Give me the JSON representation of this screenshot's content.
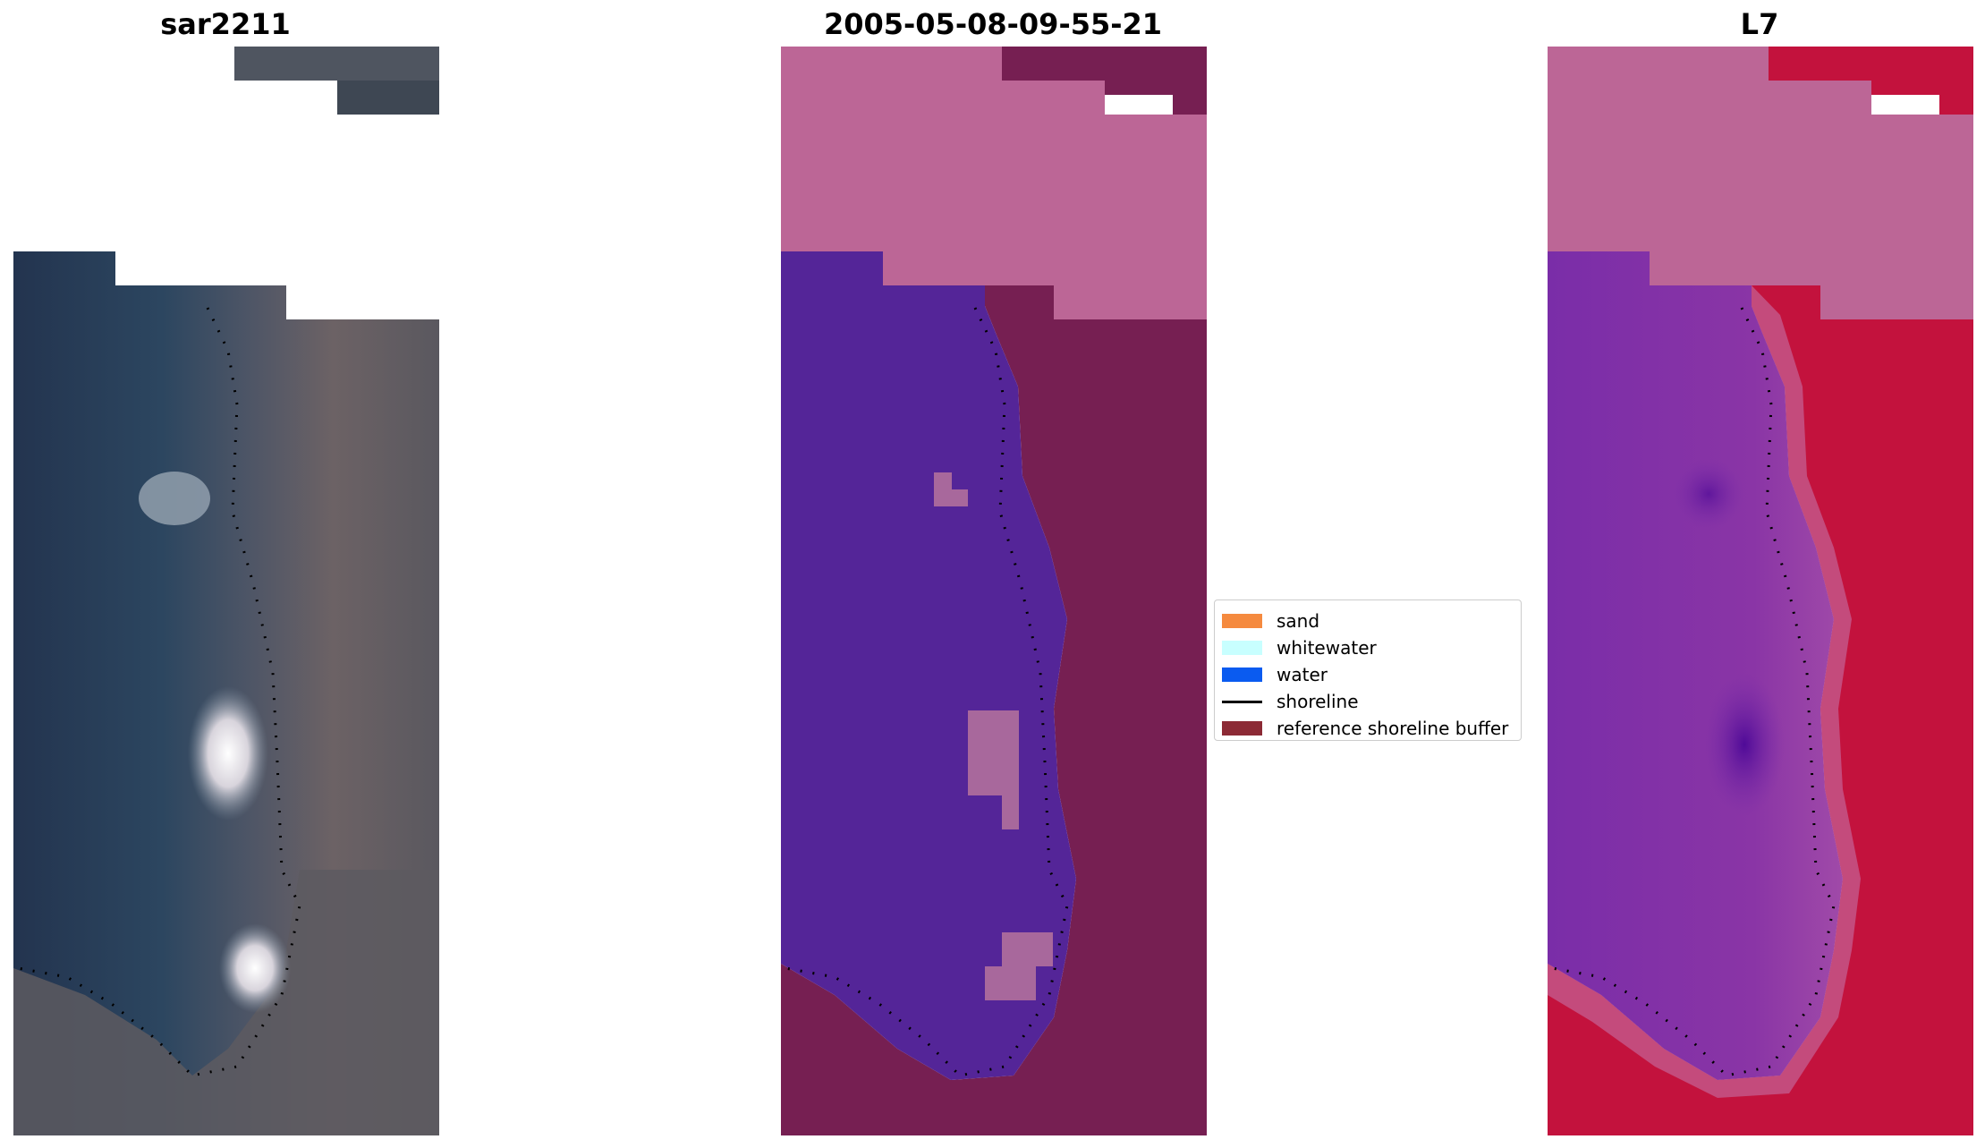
{
  "panels": [
    {
      "title": "sar2211"
    },
    {
      "title": "2005-05-08-09-55-21"
    },
    {
      "title": "L7"
    }
  ],
  "legend": {
    "items": [
      {
        "label": "sand",
        "color": "#f58a3f",
        "kind": "patch"
      },
      {
        "label": "whitewater",
        "color": "#c8ffff",
        "kind": "patch"
      },
      {
        "label": "water",
        "color": "#0a5bf0",
        "kind": "patch"
      },
      {
        "label": "shoreline",
        "color": "#000000",
        "kind": "line"
      },
      {
        "label": "reference shoreline buffer",
        "color": "#8c2a35",
        "kind": "patch"
      }
    ]
  },
  "colors": {
    "rgb_water": "#283a56",
    "rgb_land": "#6a6466",
    "class_water": "#542598",
    "class_land": "#761f52",
    "class_nodata": "#bc6696",
    "class_patch": "#a8689c",
    "ndwi_water": "#7f2aa2",
    "ndwi_land": "#c3123d",
    "ndwi_nodata": "#bc6696"
  }
}
